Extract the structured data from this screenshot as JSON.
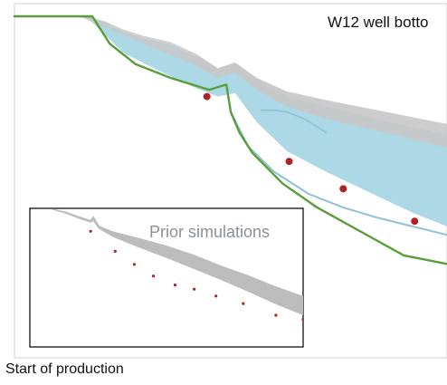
{
  "chart_data": [
    {
      "type": "line",
      "title": "W12 well botto",
      "xlabel": "Start of production",
      "ylabel": "",
      "x_range": [
        0,
        100
      ],
      "y_range": [
        0,
        100
      ],
      "grid": false,
      "series": [
        {
          "role": "envelope-posterior",
          "color": "#add8e6",
          "upper": {
            "x": [
              15,
              17,
              21,
              25,
              30,
              36,
              42,
              47,
              51,
              56,
              63,
              72,
              82,
              92,
              100
            ],
            "y": [
              100,
              100,
              98.2,
              95.5,
              93.5,
              91.8,
              88.2,
              84,
              86,
              81,
              76.5,
              73.5,
              70.5,
              67.5,
              65.5
            ]
          },
          "lower": {
            "x": [
              15,
              17,
              21,
              25,
              30,
              36,
              42,
              47,
              51,
              56,
              63,
              72,
              82,
              92,
              100
            ],
            "y": [
              100,
              99.5,
              94.5,
              89.5,
              86.2,
              82.5,
              79,
              76.5,
              77.5,
              69,
              60.5,
              54.5,
              48.5,
              42.5,
              38.5
            ]
          }
        },
        {
          "role": "envelope-ensemble",
          "color": "#c8c8c8",
          "upper": {
            "x": [
              15,
              17,
              21,
              25,
              30,
              36,
              42,
              47,
              51,
              56,
              63,
              72,
              82,
              92,
              100
            ],
            "y": [
              100,
              100,
              98.5,
              96.2,
              94.2,
              92.5,
              89,
              84.8,
              86.5,
              82,
              78,
              75.5,
              73,
              70.5,
              68.5
            ]
          },
          "lower": {
            "x": [
              42,
              47,
              51,
              56,
              63,
              72,
              82,
              92,
              100
            ],
            "y": [
              85.5,
              82,
              83.5,
              78.5,
              73.5,
              70,
              67,
              64,
              61.5
            ]
          }
        },
        {
          "role": "prior-low",
          "color": "#5a9e3a",
          "x": [
            0,
            18,
            22,
            28,
            36,
            45,
            49,
            50,
            52,
            55,
            62,
            70,
            80,
            90,
            100
          ],
          "y": [
            100,
            100,
            92,
            86,
            82,
            78.5,
            80,
            72,
            66,
            60,
            51,
            44,
            37,
            30,
            27.5
          ]
        },
        {
          "role": "member-low",
          "color": "#8ec3d6",
          "x": [
            50,
            54,
            60,
            68,
            76,
            84,
            92,
            100
          ],
          "y": [
            72,
            62,
            54.5,
            48,
            44,
            41,
            38.5,
            36
          ]
        },
        {
          "role": "member-high",
          "color": "#8ec3d6",
          "x": [
            57,
            60,
            63,
            67,
            72
          ],
          "y": [
            72.5,
            72.5,
            72,
            70,
            66
          ]
        }
      ],
      "observations": {
        "color": "#b22222",
        "x": [
          44.5,
          63.5,
          76,
          92.5
        ],
        "y": [
          76.5,
          57.5,
          49.5,
          40
        ]
      }
    },
    {
      "type": "line",
      "title": "Prior simulations",
      "xlabel": "",
      "ylabel": "",
      "x_range": [
        0,
        100
      ],
      "y_range": [
        0,
        100
      ],
      "grid": false,
      "series": [
        {
          "role": "envelope-prior",
          "color": "#bdbdbd",
          "upper": {
            "x": [
              8,
              13,
              18,
              22,
              23,
              25,
              30,
              40,
              50,
              60,
              70,
              80,
              90,
              100
            ],
            "y": [
              100,
              98,
              94.5,
              92,
              95,
              88,
              84,
              79,
              73.5,
              67,
              59,
              52,
              44,
              37
            ]
          },
          "lower": {
            "x": [
              8,
              13,
              18,
              22,
              23,
              25,
              30,
              40,
              50,
              60,
              70,
              80,
              90,
              100
            ],
            "y": [
              100,
              97,
              93,
              90.5,
              91.5,
              86,
              80,
              72,
              64.5,
              56.5,
              48.5,
              40,
              31,
              23
            ]
          }
        }
      ],
      "observations": {
        "color": "#b22222",
        "x": [
          22,
          31,
          38,
          45,
          53,
          60,
          68,
          78,
          90,
          100
        ],
        "y": [
          84,
          69.5,
          60,
          51.5,
          45,
          42,
          37,
          31.5,
          23,
          20
        ]
      }
    }
  ]
}
